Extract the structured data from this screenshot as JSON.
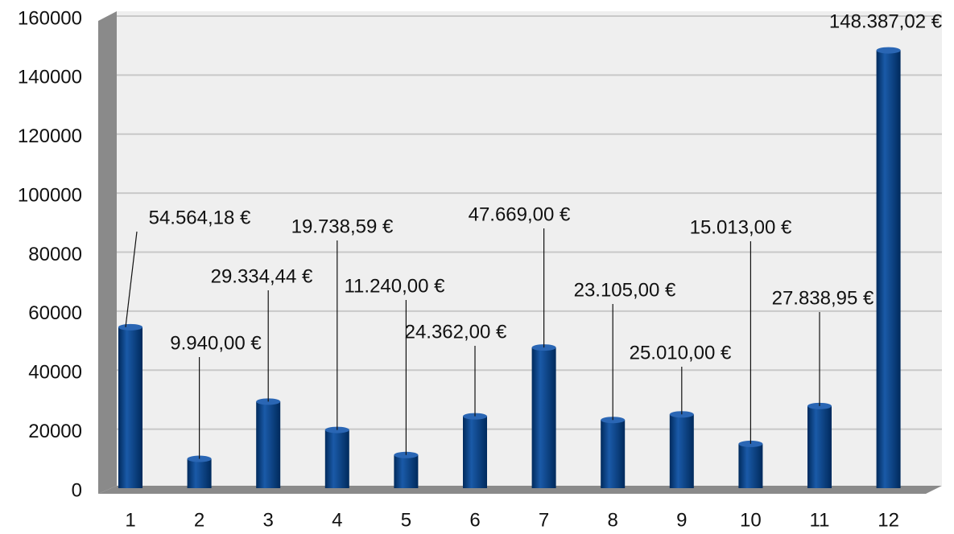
{
  "chart_data": {
    "type": "bar",
    "categories": [
      "1",
      "2",
      "3",
      "4",
      "5",
      "6",
      "7",
      "8",
      "9",
      "10",
      "11",
      "12"
    ],
    "values": [
      54564.18,
      9940,
      29334.44,
      19738.59,
      11240,
      24362,
      47669,
      23105,
      25010,
      15013,
      27838.95,
      148387.02
    ],
    "value_labels": [
      "54.564,18 €",
      "9.940,00 €",
      "29.334,44 €",
      "19.738,59 €",
      "11.240,00 €",
      "24.362,00 €",
      "47.669,00 €",
      "23.105,00 €",
      "25.010,00 €",
      "15.013,00 €",
      "27.838,95 €",
      "148.387,02 €"
    ],
    "color": "#003f87",
    "ylim": [
      0,
      160000
    ],
    "yticks": [
      0,
      20000,
      40000,
      60000,
      80000,
      100000,
      120000,
      140000,
      160000
    ],
    "grid": true
  }
}
